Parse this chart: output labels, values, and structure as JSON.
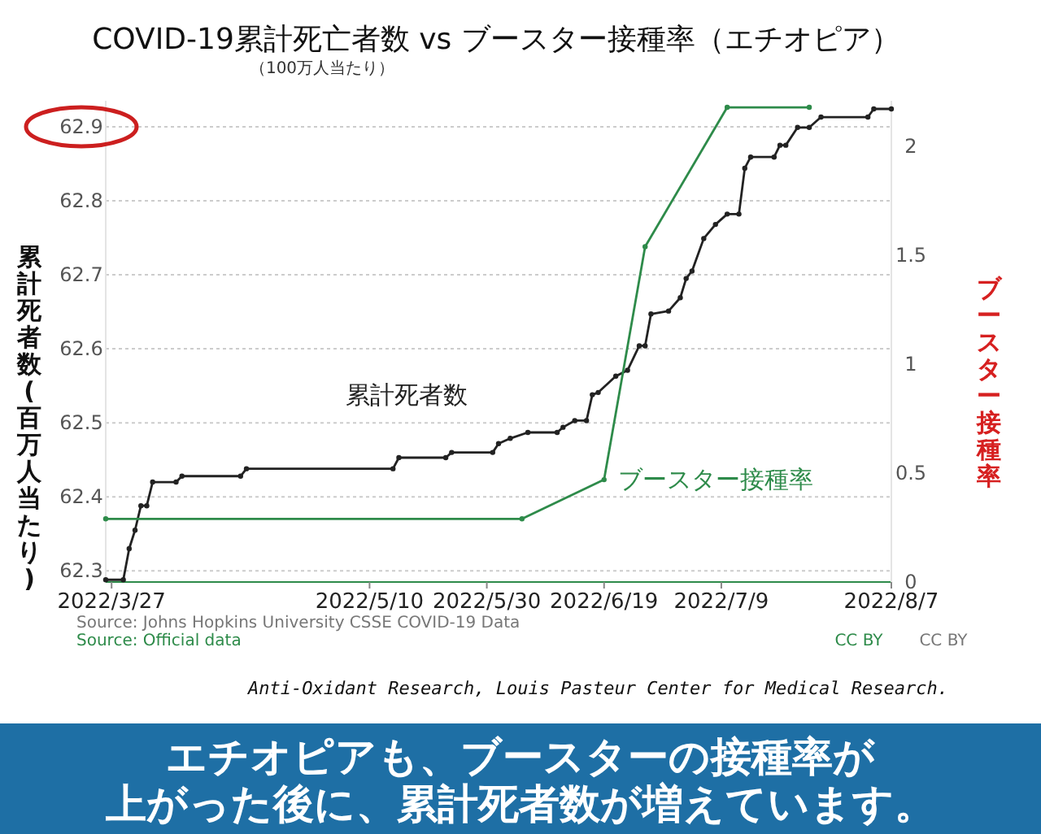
{
  "chart_data": {
    "type": "line",
    "title": "COVID-19累計死亡者数 vs ブースター接種率（エチオピア）",
    "subtitle": "（100万人当たり）",
    "ylabel": "累計死者数(百万人当たり)",
    "y2label": "ブースター接種率",
    "xlim": [
      "2022-03-26",
      "2022-08-07"
    ],
    "xticks": [
      {
        "value": "2022-03-27",
        "label": "2022/3/27"
      },
      {
        "value": "2022-05-10",
        "label": "2022/5/10"
      },
      {
        "value": "2022-05-30",
        "label": "2022/5/30"
      },
      {
        "value": "2022-06-19",
        "label": "2022/6/19"
      },
      {
        "value": "2022-07-09",
        "label": "2022/7/9"
      },
      {
        "value": "2022-08-07",
        "label": "2022/8/7"
      }
    ],
    "ylim": [
      62.285,
      62.935
    ],
    "yticks": [
      62.3,
      62.4,
      62.5,
      62.6,
      62.7,
      62.8,
      62.9
    ],
    "y2lim": [
      0,
      2.21
    ],
    "y2ticks": [
      0,
      0.5,
      1,
      1.5,
      2
    ],
    "grid": "y",
    "marker": "circle",
    "series": [
      {
        "name": "累計死者数",
        "color": "#222222",
        "axis": "y",
        "x": [
          "2022-03-26",
          "2022-03-29",
          "2022-03-30",
          "2022-03-31",
          "2022-04-01",
          "2022-04-02",
          "2022-04-03",
          "2022-04-07",
          "2022-04-08",
          "2022-04-18",
          "2022-04-19",
          "2022-05-14",
          "2022-05-15",
          "2022-05-23",
          "2022-05-24",
          "2022-05-31",
          "2022-06-01",
          "2022-06-03",
          "2022-06-06",
          "2022-06-11",
          "2022-06-12",
          "2022-06-14",
          "2022-06-16",
          "2022-06-17",
          "2022-06-18",
          "2022-06-21",
          "2022-06-23",
          "2022-06-25",
          "2022-06-26",
          "2022-06-27",
          "2022-06-30",
          "2022-07-02",
          "2022-07-03",
          "2022-07-04",
          "2022-07-06",
          "2022-07-08",
          "2022-07-10",
          "2022-07-12",
          "2022-07-13",
          "2022-07-14",
          "2022-07-18",
          "2022-07-19",
          "2022-07-20",
          "2022-07-22",
          "2022-07-24",
          "2022-07-26",
          "2022-08-03",
          "2022-08-04",
          "2022-08-07"
        ],
        "values": [
          62.288,
          62.288,
          62.33,
          62.355,
          62.388,
          62.388,
          62.42,
          62.42,
          62.428,
          62.428,
          62.438,
          62.438,
          62.453,
          62.453,
          62.46,
          62.46,
          62.472,
          62.479,
          62.487,
          62.487,
          62.494,
          62.503,
          62.503,
          62.538,
          62.541,
          62.563,
          62.571,
          62.604,
          62.604,
          62.647,
          62.651,
          62.669,
          62.695,
          62.705,
          62.749,
          62.768,
          62.782,
          62.782,
          62.844,
          62.859,
          62.859,
          62.875,
          62.875,
          62.899,
          62.899,
          62.913,
          62.913,
          62.924,
          62.924
        ]
      },
      {
        "name": "ブースター接種率",
        "color": "#2e8b4a",
        "axis": "y2",
        "x": [
          "2022-03-26",
          "2022-06-05",
          "2022-06-19",
          "2022-06-26",
          "2022-07-10",
          "2022-07-24"
        ],
        "values": [
          0.29,
          0.29,
          0.47,
          1.54,
          2.18,
          2.18
        ]
      }
    ],
    "annotations": [
      "Source: Johns Hopkins University CSSE COVID-19 Data",
      "Source: Official data",
      "CC BY",
      "CC BY",
      "Anti-Oxidant Research, Louis Pasteur Center for Medical Research.",
      "エチオピアも、ブースターの接種率が",
      "上がった後に、累計死者数が増えています。"
    ]
  }
}
